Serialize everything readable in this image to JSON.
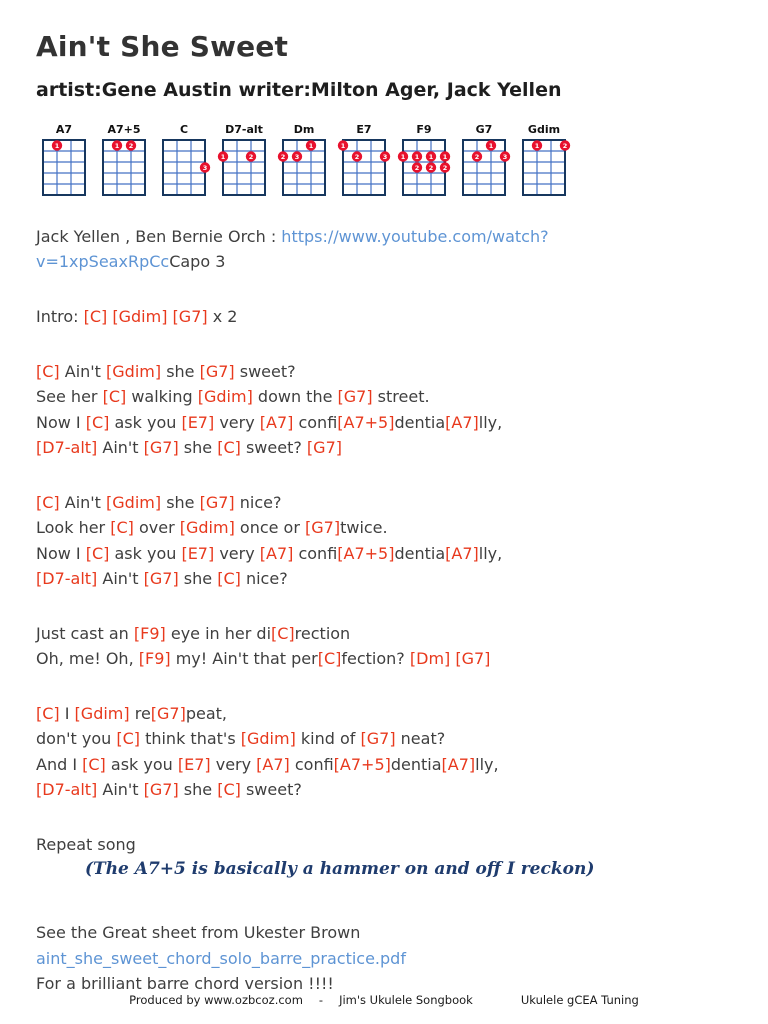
{
  "page": {
    "title": "Ain't She Sweet",
    "subtitle": "artist:Gene Austin writer:Milton Ager, Jack Yellen"
  },
  "colors": {
    "chord_text": "#e8391d",
    "link": "#5e94d4",
    "body_text": "#3f3f3f",
    "title_text": "#333333",
    "grid_outer": "#17375e",
    "grid_inner": "#4472c4",
    "dot_fill": "#e8112d",
    "dot_number": "#ffffff",
    "note_text": "#1f3c6e",
    "footer_text": "#1a1a1a",
    "background": "#ffffff"
  },
  "chord_diagrams": [
    {
      "name": "A7",
      "dots": [
        {
          "string": 2,
          "fret": 1,
          "finger": "1"
        }
      ]
    },
    {
      "name": "A7+5",
      "dots": [
        {
          "string": 2,
          "fret": 1,
          "finger": "1"
        },
        {
          "string": 3,
          "fret": 1,
          "finger": "2"
        }
      ]
    },
    {
      "name": "C",
      "dots": [
        {
          "string": 4,
          "fret": 3,
          "finger": "3"
        }
      ]
    },
    {
      "name": "D7-alt",
      "dots": [
        {
          "string": 1,
          "fret": 2,
          "finger": "1"
        },
        {
          "string": 3,
          "fret": 2,
          "finger": "2"
        }
      ]
    },
    {
      "name": "Dm",
      "dots": [
        {
          "string": 3,
          "fret": 1,
          "finger": "1"
        },
        {
          "string": 1,
          "fret": 2,
          "finger": "2"
        },
        {
          "string": 2,
          "fret": 2,
          "finger": "3"
        }
      ]
    },
    {
      "name": "E7",
      "dots": [
        {
          "string": 1,
          "fret": 1,
          "finger": "1"
        },
        {
          "string": 2,
          "fret": 2,
          "finger": "2"
        },
        {
          "string": 4,
          "fret": 2,
          "finger": "3"
        }
      ]
    },
    {
      "name": "F9",
      "dots": [
        {
          "string": 1,
          "fret": 2,
          "finger": "1"
        },
        {
          "string": 2,
          "fret": 2,
          "finger": "1"
        },
        {
          "string": 3,
          "fret": 2,
          "finger": "1"
        },
        {
          "string": 4,
          "fret": 2,
          "finger": "1"
        },
        {
          "string": 2,
          "fret": 3,
          "finger": "2"
        },
        {
          "string": 3,
          "fret": 3,
          "finger": "2"
        },
        {
          "string": 4,
          "fret": 3,
          "finger": "2"
        }
      ]
    },
    {
      "name": "G7",
      "dots": [
        {
          "string": 3,
          "fret": 1,
          "finger": "1"
        },
        {
          "string": 2,
          "fret": 2,
          "finger": "2"
        },
        {
          "string": 4,
          "fret": 2,
          "finger": "3"
        }
      ]
    },
    {
      "name": "Gdim",
      "dots": [
        {
          "string": 2,
          "fret": 1,
          "finger": "1"
        },
        {
          "string": 4,
          "fret": 1,
          "finger": "2"
        }
      ]
    }
  ],
  "byline": {
    "segments": [
      {
        "text": "Jack Yellen , Ben Bernie Orch : "
      },
      {
        "link": "https://www.youtube.com/watch?v=1xpSeaxRpCc"
      },
      {
        "text": "Capo 3"
      }
    ]
  },
  "song": {
    "sections": [
      {
        "name": "intro",
        "lines": [
          "Intro: [C] [Gdim] [G7] x 2"
        ]
      },
      {
        "name": "verse-1",
        "lines": [
          "[C] Ain't [Gdim] she [G7] sweet?",
          "See her [C] walking [Gdim] down the [G7] street.",
          "Now I [C] ask you [E7] very [A7] confi[A7+5]dentia[A7]lly,",
          "[D7-alt] Ain't [G7] she [C] sweet? [G7]"
        ]
      },
      {
        "name": "verse-2",
        "lines": [
          "[C] Ain't [Gdim] she [G7] nice?",
          "Look her [C] over [Gdim] once or [G7]twice.",
          "Now I [C] ask you [E7] very [A7] confi[A7+5]dentia[A7]lly,",
          "[D7-alt] Ain't [G7] she [C] nice?"
        ]
      },
      {
        "name": "bridge",
        "lines": [
          "Just cast an [F9] eye in her di[C]rection",
          "Oh, me! Oh, [F9] my! Ain't that per[C]fection? [Dm] [G7]"
        ]
      },
      {
        "name": "verse-3",
        "lines": [
          "[C] I [Gdim] re[G7]peat,",
          "don't you [C] think that's [Gdim] kind of [G7] neat?",
          "And I [C] ask you [E7] very [A7] confi[A7+5]dentia[A7]lly,",
          "[D7-alt] Ain't [G7] she [C] sweet?"
        ]
      },
      {
        "name": "outro",
        "lines": [
          "Repeat song"
        ]
      }
    ],
    "hammer_note": "(The A7+5 is basically a hammer on and off I reckon)"
  },
  "see_sheet": {
    "line1": "See the Great sheet from Ukester Brown",
    "link": "aint_she_sweet_chord_solo_barre_practice.pdf",
    "line3": "For a brilliant barre chord version !!!!"
  },
  "footer": {
    "produced": "Produced by www.ozbcoz.com",
    "dash": "-",
    "songbook": "Jim's Ukulele Songbook",
    "tuning": "Ukulele gCEA Tuning"
  }
}
